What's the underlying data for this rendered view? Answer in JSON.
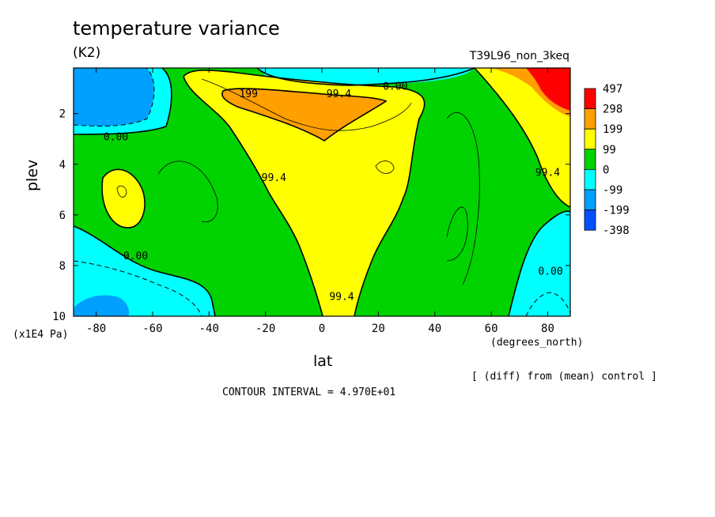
{
  "chart_data": {
    "type": "heatmap",
    "title": "temperature variance",
    "units": "(K2)",
    "run_label": "T39L96_non_3keq",
    "xlabel": "lat",
    "x_unit": "(degrees_north)",
    "ylabel": "plev",
    "y_unit": "(x1E4 Pa)",
    "note": "[ (diff) from (mean) control ]",
    "contour_interval": "CONTOUR INTERVAL = 4.970E+01",
    "xlim": [
      -88,
      88
    ],
    "ylim": [
      10,
      0.2
    ],
    "x_ticks": [
      "-80",
      "-60",
      "-40",
      "-20",
      "0",
      "20",
      "40",
      "60",
      "80"
    ],
    "x_tick_values": [
      -80,
      -60,
      -40,
      -20,
      0,
      20,
      40,
      60,
      80
    ],
    "y_ticks": [
      "2",
      "4",
      "6",
      "8",
      "10"
    ],
    "y_tick_values": [
      2,
      4,
      6,
      8,
      10
    ],
    "colorbar_levels": [
      "497",
      "298",
      "199",
      "99",
      "0",
      "-99",
      "-199",
      "-398"
    ],
    "colorbar_colors": [
      "#ff0000",
      "#ff9f00",
      "#ffff00",
      "#00d300",
      "#00ffff",
      "#00a0ff",
      "#0050ff"
    ],
    "contour_labels": [
      {
        "text": "0.00",
        "x": -73,
        "y": 2.9
      },
      {
        "text": "199",
        "x": -26,
        "y": 1.2
      },
      {
        "text": "99.4",
        "x": 6,
        "y": 1.2
      },
      {
        "text": "0.00",
        "x": 26,
        "y": 0.9
      },
      {
        "text": "99.4",
        "x": -17,
        "y": 4.5
      },
      {
        "text": "99.4",
        "x": 7,
        "y": 9.2
      },
      {
        "text": "0.00",
        "x": -66,
        "y": 7.6
      },
      {
        "text": "99.4",
        "x": 80,
        "y": 4.3
      },
      {
        "text": "0.00",
        "x": 81,
        "y": 8.2
      }
    ]
  }
}
